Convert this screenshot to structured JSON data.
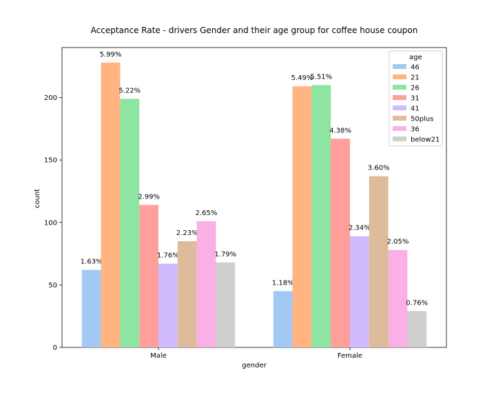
{
  "chart_data": {
    "type": "bar",
    "title": "Acceptance Rate - drivers Gender and their age group for coffee house coupon",
    "xlabel": "gender",
    "ylabel": "count",
    "ylim": [
      0,
      240
    ],
    "yticks": [
      0,
      50,
      100,
      150,
      200
    ],
    "categories": [
      "Male",
      "Female"
    ],
    "legend": {
      "title": "age",
      "placement": "top-right"
    },
    "grid": false,
    "series": [
      {
        "name": "46",
        "color": "#a1c9f4",
        "values": [
          62,
          45
        ],
        "labels": [
          "1.63%",
          "1.18%"
        ]
      },
      {
        "name": "21",
        "color": "#ffb482",
        "values": [
          228,
          209
        ],
        "labels": [
          "5.99%",
          "5.49%"
        ]
      },
      {
        "name": "26",
        "color": "#8de5a1",
        "values": [
          199,
          210
        ],
        "labels": [
          "5.22%",
          "5.51%"
        ]
      },
      {
        "name": "31",
        "color": "#ff9f9b",
        "values": [
          114,
          167
        ],
        "labels": [
          "2.99%",
          "4.38%"
        ]
      },
      {
        "name": "41",
        "color": "#d0bbff",
        "values": [
          67,
          89
        ],
        "labels": [
          "1.76%",
          "2.34%"
        ]
      },
      {
        "name": "50plus",
        "color": "#debb9b",
        "values": [
          85,
          137
        ],
        "labels": [
          "2.23%",
          "3.60%"
        ]
      },
      {
        "name": "36",
        "color": "#fab0e4",
        "values": [
          101,
          78
        ],
        "labels": [
          "2.65%",
          "2.05%"
        ]
      },
      {
        "name": "below21",
        "color": "#cfcfcf",
        "values": [
          68,
          29
        ],
        "labels": [
          "1.79%",
          "0.76%"
        ]
      }
    ]
  }
}
